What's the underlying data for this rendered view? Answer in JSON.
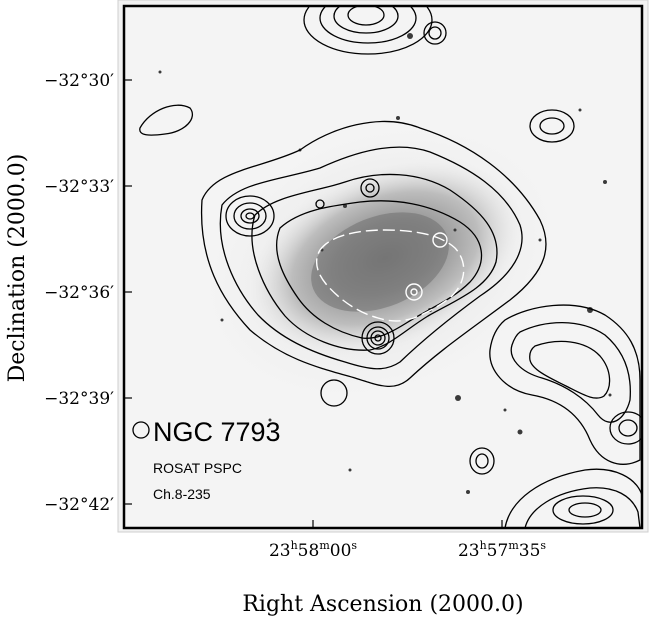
{
  "figure": {
    "object_name": "NGC 7793",
    "instrument": "ROSAT PSPC",
    "channels": "Ch.8-235",
    "xlabel": "Right Ascension (2000.0)",
    "ylabel": "Declination (2000.0)",
    "ra_ticks": [
      {
        "h": "23",
        "m": "58",
        "s": "00"
      },
      {
        "h": "23",
        "m": "57",
        "s": "35"
      }
    ],
    "dec_ticks": [
      "−32°30′",
      "−32°33′",
      "−32°36′",
      "−32°39′",
      "−32°42′"
    ],
    "colors": {
      "contour": "#000000",
      "inner_contour": "#ffffff",
      "frame": "#000000"
    }
  }
}
